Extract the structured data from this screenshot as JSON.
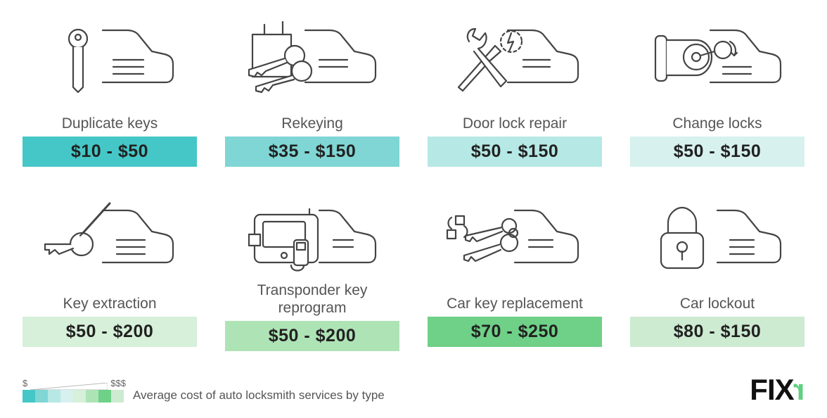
{
  "services": [
    {
      "label": "Duplicate keys",
      "price": "$10 - $50",
      "color": "#45c7c7"
    },
    {
      "label": "Rekeying",
      "price": "$35 - $150",
      "color": "#7fd6d4"
    },
    {
      "label": "Door lock repair",
      "price": "$50 - $150",
      "color": "#b6e8e5"
    },
    {
      "label": "Change locks",
      "price": "$50 - $150",
      "color": "#d6f1ee"
    },
    {
      "label": "Key extraction",
      "price": "$50 - $200",
      "color": "#d6f0d9"
    },
    {
      "label": "Transponder key reprogram",
      "price": "$50 - $200",
      "color": "#aee3b6"
    },
    {
      "label": "Car key replacement",
      "price": "$70 - $250",
      "color": "#6fd088"
    },
    {
      "label": "Car lockout",
      "price": "$80 - $150",
      "color": "#cdebd1"
    }
  ],
  "legend": {
    "low": "$",
    "high": "$$$",
    "text": "Average cost of auto locksmith services by type",
    "swatches": [
      "#45c7c7",
      "#7fd6d4",
      "#b6e8e5",
      "#d6f1ee",
      "#d6f0d9",
      "#aee3b6",
      "#6fd088",
      "#cdebd1"
    ]
  },
  "logo": {
    "text": "FIX",
    "suffix": "r"
  },
  "style": {
    "icon_stroke": "#444444",
    "label_color": "#555555",
    "price_color": "#222222",
    "bg": "#ffffff",
    "price_fontsize": 25,
    "label_fontsize": 21
  }
}
